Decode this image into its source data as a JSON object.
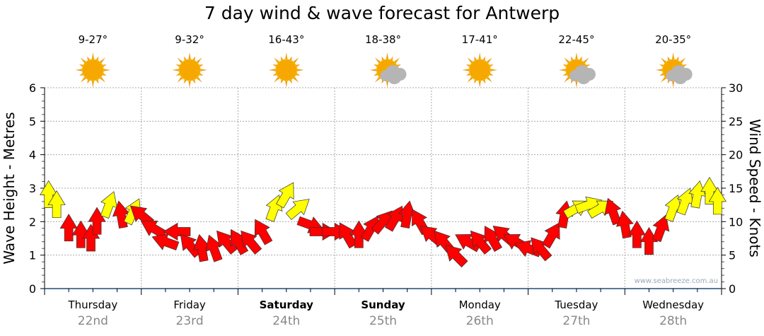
{
  "title": "7 day wind & wave forecast for Antwerp",
  "watermark": "www.seabreeze.com.au",
  "days": [
    {
      "day": "Thursday",
      "date": "22nd",
      "temp": "9-27°",
      "weather": "sunny",
      "bold": false
    },
    {
      "day": "Friday",
      "date": "23rd",
      "temp": "9-32°",
      "weather": "sunny",
      "bold": false
    },
    {
      "day": "Saturday",
      "date": "24th",
      "temp": "16-43°",
      "weather": "sunny",
      "bold": true
    },
    {
      "day": "Sunday",
      "date": "25th",
      "temp": "18-38°",
      "weather": "partly-cloudy",
      "bold": true
    },
    {
      "day": "Monday",
      "date": "26th",
      "temp": "17-41°",
      "weather": "sunny",
      "bold": false
    },
    {
      "day": "Tuesday",
      "date": "27th",
      "temp": "22-45°",
      "weather": "partly-cloudy",
      "bold": false
    },
    {
      "day": "Wednesday",
      "date": "28th",
      "temp": "20-35°",
      "weather": "partly-cloudy",
      "bold": false
    }
  ],
  "colors": {
    "strong": "#ffff00",
    "light": "#ff0000",
    "axis": "#1a4f7a",
    "grid": "#aaaaaa"
  },
  "chart_data": {
    "type": "scatter",
    "title": "7 day wind & wave forecast for Antwerp",
    "ylabel": "Wave Height - Metres",
    "y2label": "Wind Speed - Knots",
    "ylim": [
      0,
      6
    ],
    "y2lim": [
      0,
      30
    ],
    "yticks": [
      "0",
      "1",
      "2",
      "3",
      "4",
      "5",
      "6"
    ],
    "y2ticks": [
      "0",
      "5",
      "10",
      "15",
      "20",
      "25",
      "30"
    ],
    "grid": true,
    "x_unit": "hours from Thursday 00:00",
    "wind": [
      [
        1,
        14,
        0,
        "y"
      ],
      [
        3,
        12.5,
        0,
        "y"
      ],
      [
        6,
        9,
        0,
        "r"
      ],
      [
        9,
        8,
        0,
        "r"
      ],
      [
        11.5,
        7.5,
        0,
        "r"
      ],
      [
        13,
        10,
        0,
        "r"
      ],
      [
        16,
        12.5,
        20,
        "y"
      ],
      [
        19,
        11,
        -10,
        "r"
      ],
      [
        22,
        11.5,
        25,
        "y"
      ],
      [
        24,
        11,
        -50,
        "r"
      ],
      [
        27,
        9,
        -60,
        "r"
      ],
      [
        30,
        7,
        -70,
        "r"
      ],
      [
        33,
        8.5,
        -90,
        "r"
      ],
      [
        36,
        6.5,
        -40,
        "r"
      ],
      [
        39,
        6,
        -10,
        "r"
      ],
      [
        42,
        6,
        -20,
        "r"
      ],
      [
        45,
        7,
        -40,
        "r"
      ],
      [
        48,
        7,
        -30,
        "r"
      ],
      [
        51,
        7,
        -40,
        "r"
      ],
      [
        54,
        8.5,
        -30,
        "r"
      ],
      [
        57,
        12,
        20,
        "y"
      ],
      [
        60,
        14,
        30,
        "y"
      ],
      [
        63,
        12,
        50,
        "y"
      ],
      [
        66,
        9.5,
        110,
        "r"
      ],
      [
        69,
        8.5,
        90,
        "r"
      ],
      [
        72,
        8.5,
        90,
        "r"
      ],
      [
        75,
        8,
        -30,
        "r"
      ],
      [
        78,
        8,
        0,
        "r"
      ],
      [
        81,
        9,
        30,
        "r"
      ],
      [
        84,
        10,
        40,
        "r"
      ],
      [
        87,
        10.5,
        30,
        "r"
      ],
      [
        90,
        11,
        10,
        "r"
      ],
      [
        93,
        10,
        -30,
        "r"
      ],
      [
        96,
        8,
        -50,
        "r"
      ],
      [
        99,
        7,
        -40,
        "r"
      ],
      [
        102,
        5,
        -45,
        "r"
      ],
      [
        105,
        7,
        -60,
        "r"
      ],
      [
        108,
        7,
        -40,
        "r"
      ],
      [
        111,
        7.5,
        -30,
        "r"
      ],
      [
        114,
        8,
        -50,
        "r"
      ],
      [
        117,
        7,
        -60,
        "r"
      ],
      [
        120,
        6,
        -70,
        "r"
      ],
      [
        123,
        6,
        -40,
        "r"
      ],
      [
        126,
        8,
        30,
        "r"
      ],
      [
        129,
        11,
        10,
        "r"
      ],
      [
        132,
        12,
        60,
        "y"
      ],
      [
        135,
        12.5,
        70,
        "y"
      ],
      [
        138,
        12,
        60,
        "y"
      ],
      [
        141,
        11.5,
        -20,
        "r"
      ],
      [
        144,
        9.5,
        -10,
        "r"
      ],
      [
        147,
        8,
        0,
        "r"
      ],
      [
        150,
        7,
        0,
        "r"
      ],
      [
        153,
        9,
        20,
        "r"
      ],
      [
        156,
        12,
        20,
        "y"
      ],
      [
        159,
        13,
        20,
        "y"
      ],
      [
        162,
        14,
        10,
        "y"
      ],
      [
        165,
        14.5,
        0,
        "y"
      ],
      [
        167,
        13,
        0,
        "y"
      ]
    ]
  }
}
